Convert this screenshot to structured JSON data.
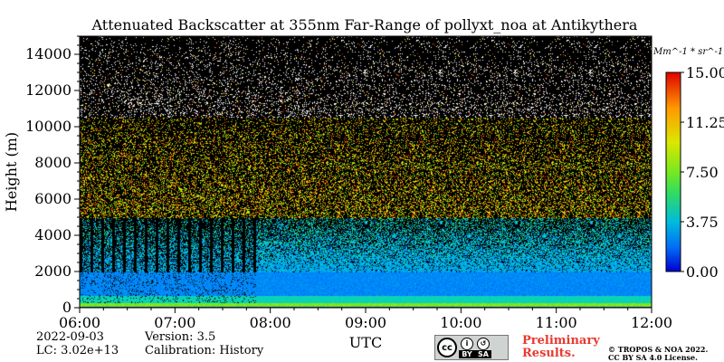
{
  "chart_data": {
    "type": "heatmap",
    "title": "Attenuated Backscatter at 355nm Far-Range of pollyxt_noa at Antikythera",
    "xlabel": "UTC",
    "ylabel": "Height (m)",
    "x_ticks": [
      "06:00",
      "07:00",
      "08:00",
      "09:00",
      "10:00",
      "11:00",
      "12:00"
    ],
    "x_range_hours": [
      6,
      12
    ],
    "y_ticks": [
      0,
      2000,
      4000,
      6000,
      8000,
      10000,
      12000,
      14000
    ],
    "y_range": [
      0,
      15000
    ],
    "colorbar": {
      "unit_label": "Mm^-1 * sr^-1",
      "ticks": [
        "0.00",
        "3.75",
        "7.50",
        "11.25",
        "15.00"
      ],
      "range": [
        0,
        15
      ],
      "colors": [
        "#0000d0",
        "#0080ff",
        "#00d0d0",
        "#40e040",
        "#b0f000",
        "#ffe000",
        "#ff8000",
        "#e00000"
      ]
    },
    "features": {
      "surface_layer_top_m": 300,
      "boundary_layer_top_m": 2000,
      "cloud_gap_period_hours": [
        6.0,
        7.85
      ],
      "noise_above_m": 5000
    }
  },
  "footer": {
    "date": "2022-09-03",
    "version": "Version: 3.5",
    "lc": "LC: 3.02e+13",
    "calibration": "Calibration: History",
    "cc_by": "BY",
    "cc_sa": "SA",
    "preliminary_line1": "Preliminary",
    "preliminary_line2": "Results.",
    "copyright_line1": "© TROPOS & NOA 2022.",
    "copyright_line2": "CC BY SA 4.0 License."
  }
}
